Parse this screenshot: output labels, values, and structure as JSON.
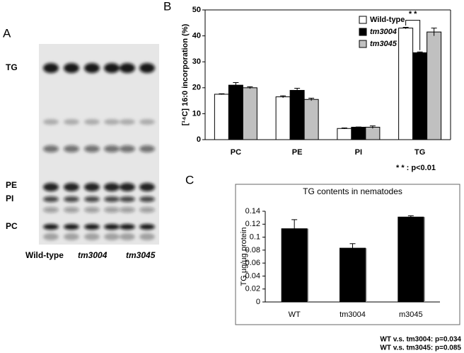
{
  "panels": [
    "A",
    "B",
    "C"
  ],
  "tlc": {
    "band_labels": [
      "TG",
      "PE",
      "PI",
      "PC"
    ],
    "lane_labels": [
      "Wild-type",
      "tm3004",
      "tm3045"
    ]
  },
  "chart_data": [
    {
      "type": "bar",
      "ylabel": "[¹⁴C] 16:0 incorporation (%)",
      "categories": [
        "PC",
        "PE",
        "PI",
        "TG"
      ],
      "series": [
        {
          "name": "Wild-type",
          "color": "#ffffff",
          "values": [
            17.5,
            16.5,
            4.3,
            43
          ],
          "errors": [
            0.2,
            0.4,
            0.2,
            0.3
          ]
        },
        {
          "name": "tm3004",
          "color": "#000000",
          "values": [
            21,
            19,
            4.8,
            33.5
          ],
          "errors": [
            1,
            0.8,
            0.1,
            0.3
          ]
        },
        {
          "name": "tm3045",
          "color": "#c0c0c0",
          "values": [
            20,
            15.5,
            4.8,
            41.5
          ],
          "errors": [
            0.4,
            0.5,
            0.5,
            1.5
          ]
        }
      ],
      "ylim": [
        0,
        50
      ],
      "yticks": [
        0,
        10,
        20,
        30,
        40,
        50
      ],
      "legend": "top-right",
      "annotations": [
        "* *",
        "* * : p<0.01"
      ]
    },
    {
      "type": "bar",
      "title": "TG contents in nematodes",
      "ylabel": "TG µg/µg protein",
      "categories": [
        "WT",
        "tm3004",
        "m3045"
      ],
      "series": [
        {
          "color": "#000000",
          "values": [
            0.113,
            0.083,
            0.131
          ],
          "errors": [
            0.014,
            0.007,
            0.002
          ]
        }
      ],
      "ylim": [
        0,
        0.14
      ],
      "yticks": [
        0,
        0.02,
        0.04,
        0.06,
        0.08,
        0.1,
        0.12,
        0.14
      ],
      "annotations": [
        "WT v.s. tm3004: p=0.034",
        "WT v.s. tm3045: p=0.085"
      ]
    }
  ]
}
